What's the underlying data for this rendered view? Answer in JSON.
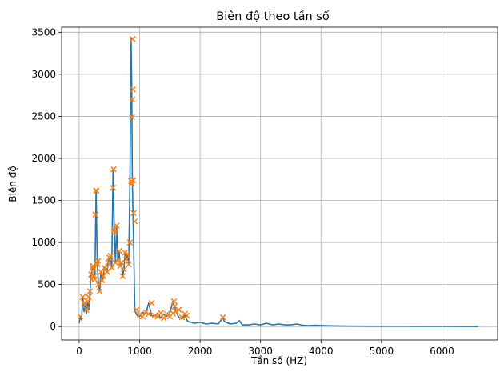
{
  "chart_data": {
    "type": "line",
    "title": "Biên độ theo tần số",
    "xlabel": "Tần số (HZ)",
    "ylabel": "Biên độ",
    "xlim": [
      -290,
      6920
    ],
    "ylim": [
      -160,
      3560
    ],
    "xticks": [
      0,
      1000,
      2000,
      3000,
      4000,
      5000,
      6000
    ],
    "yticks": [
      0,
      500,
      1000,
      1500,
      2000,
      2500,
      3000,
      3500
    ],
    "grid": true,
    "series": [
      {
        "kind": "line",
        "color": "#1f77b4",
        "x": [
          0,
          20,
          40,
          60,
          80,
          100,
          120,
          140,
          160,
          180,
          200,
          220,
          240,
          260,
          280,
          300,
          320,
          340,
          360,
          380,
          400,
          420,
          440,
          460,
          480,
          500,
          520,
          540,
          560,
          580,
          600,
          620,
          640,
          660,
          680,
          700,
          720,
          740,
          760,
          780,
          800,
          820,
          840,
          860,
          870,
          880,
          890,
          900,
          920,
          950,
          1000,
          1050,
          1100,
          1150,
          1200,
          1250,
          1300,
          1350,
          1400,
          1450,
          1500,
          1550,
          1580,
          1600,
          1650,
          1700,
          1750,
          1780,
          1800,
          1900,
          2000,
          2100,
          2200,
          2300,
          2380,
          2400,
          2500,
          2600,
          2650,
          2700,
          2800,
          2900,
          3000,
          3100,
          3200,
          3300,
          3400,
          3500,
          3600,
          3700,
          3800,
          3900,
          4000,
          4200,
          4400,
          4600,
          4800,
          5000,
          5500,
          6000,
          6600
        ],
        "y": [
          40,
          120,
          80,
          350,
          180,
          260,
          150,
          300,
          200,
          420,
          620,
          700,
          720,
          560,
          1620,
          760,
          500,
          420,
          650,
          550,
          600,
          700,
          680,
          650,
          760,
          820,
          840,
          700,
          1870,
          1150,
          760,
          1200,
          780,
          900,
          720,
          760,
          600,
          680,
          880,
          800,
          860,
          740,
          1730,
          3420,
          2820,
          1740,
          1350,
          1000,
          200,
          140,
          120,
          170,
          150,
          280,
          130,
          120,
          160,
          100,
          150,
          120,
          160,
          300,
          240,
          180,
          110,
          90,
          130,
          80,
          60,
          40,
          50,
          30,
          40,
          30,
          110,
          60,
          30,
          40,
          70,
          20,
          20,
          30,
          20,
          40,
          20,
          30,
          20,
          20,
          30,
          15,
          10,
          15,
          12,
          8,
          6,
          5,
          4,
          4,
          3,
          2,
          1
        ]
      },
      {
        "kind": "peaks",
        "marker": "x",
        "color": "#ff7f0e",
        "x": [
          20,
          60,
          80,
          100,
          120,
          140,
          160,
          180,
          200,
          210,
          220,
          230,
          240,
          250,
          260,
          270,
          280,
          285,
          290,
          300,
          310,
          320,
          340,
          360,
          380,
          400,
          420,
          440,
          460,
          480,
          500,
          520,
          540,
          560,
          570,
          580,
          590,
          600,
          620,
          640,
          660,
          680,
          700,
          720,
          740,
          760,
          780,
          800,
          820,
          840,
          860,
          870,
          875,
          880,
          885,
          890,
          895,
          900,
          920,
          950,
          1000,
          1050,
          1100,
          1150,
          1200,
          1250,
          1300,
          1350,
          1400,
          1450,
          1500,
          1550,
          1570,
          1580,
          1600,
          1650,
          1700,
          1750,
          1780,
          2380
        ],
        "y": [
          120,
          350,
          280,
          260,
          200,
          300,
          350,
          420,
          620,
          560,
          700,
          720,
          680,
          600,
          560,
          1330,
          1620,
          1610,
          760,
          740,
          780,
          500,
          420,
          650,
          550,
          600,
          700,
          680,
          650,
          760,
          820,
          840,
          700,
          1650,
          1870,
          1150,
          1120,
          760,
          1200,
          780,
          900,
          720,
          760,
          600,
          680,
          880,
          800,
          860,
          740,
          1000,
          1730,
          1700,
          2490,
          2700,
          3420,
          2820,
          1740,
          1350,
          1250,
          200,
          140,
          120,
          170,
          150,
          280,
          130,
          120,
          160,
          100,
          150,
          120,
          160,
          300,
          240,
          180,
          200,
          110,
          150,
          130,
          110
        ]
      }
    ]
  }
}
